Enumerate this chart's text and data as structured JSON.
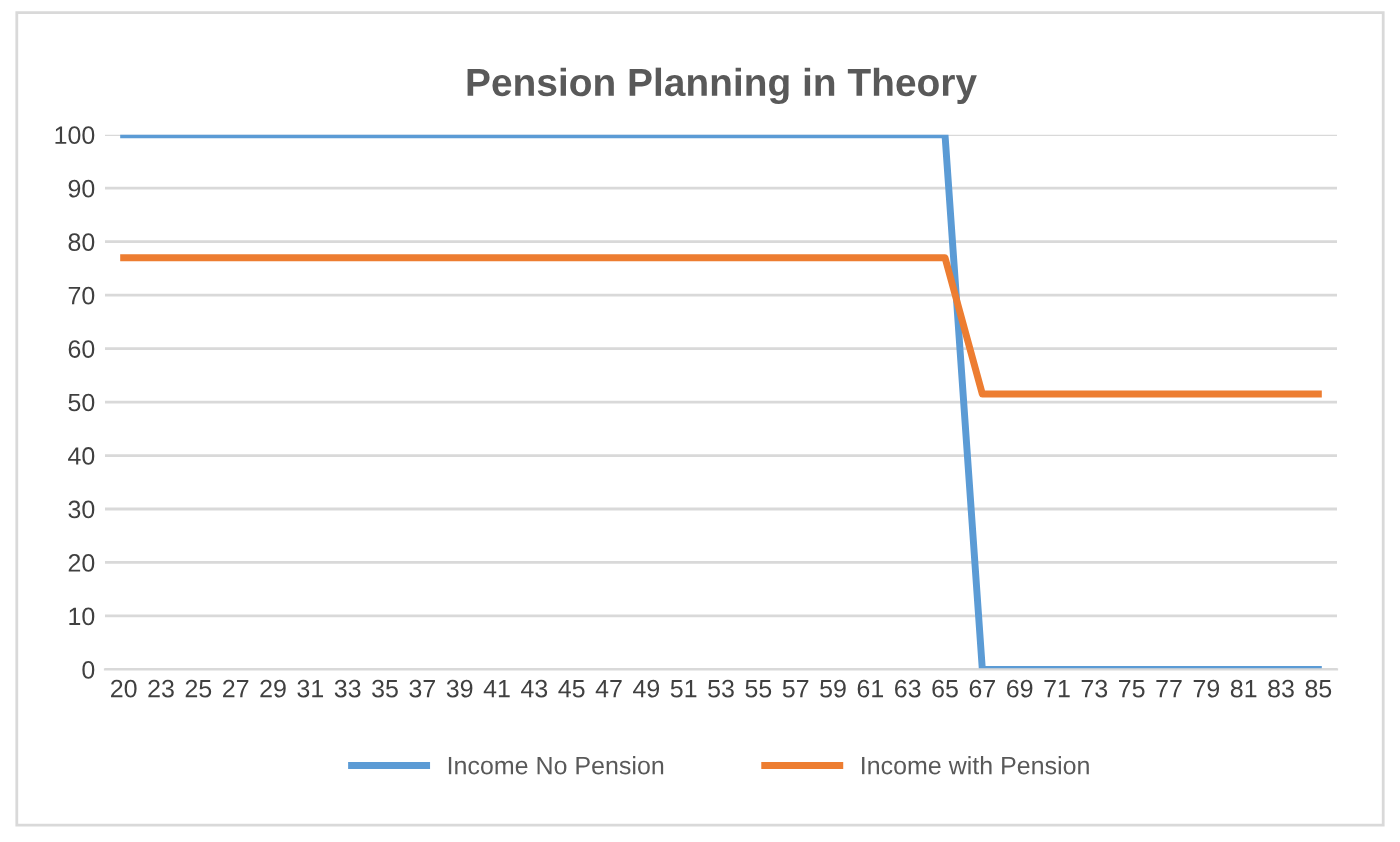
{
  "chart_data": {
    "type": "line",
    "title": "Pension Planning in Theory",
    "categories": [
      "20",
      "23",
      "25",
      "27",
      "29",
      "31",
      "33",
      "35",
      "37",
      "39",
      "41",
      "43",
      "45",
      "47",
      "49",
      "51",
      "53",
      "55",
      "57",
      "59",
      "61",
      "63",
      "65",
      "67",
      "69",
      "71",
      "73",
      "75",
      "77",
      "79",
      "81",
      "83",
      "85"
    ],
    "series": [
      {
        "name": "Income No Pension",
        "color": "#5b9bd5",
        "values": [
          100,
          100,
          100,
          100,
          100,
          100,
          100,
          100,
          100,
          100,
          100,
          100,
          100,
          100,
          100,
          100,
          100,
          100,
          100,
          100,
          100,
          100,
          100,
          0,
          0,
          0,
          0,
          0,
          0,
          0,
          0,
          0,
          0
        ]
      },
      {
        "name": "Income with Pension",
        "color": "#ed7d31",
        "values": [
          77,
          77,
          77,
          77,
          77,
          77,
          77,
          77,
          77,
          77,
          77,
          77,
          77,
          77,
          77,
          77,
          77,
          77,
          77,
          77,
          77,
          77,
          77,
          51.5,
          51.5,
          51.5,
          51.5,
          51.5,
          51.5,
          51.5,
          51.5,
          51.5,
          51.5
        ]
      }
    ],
    "ylim": [
      0,
      100
    ],
    "yticks": [
      0,
      10,
      20,
      30,
      40,
      50,
      60,
      70,
      80,
      90,
      100
    ],
    "grid": "y",
    "legend": "bottom",
    "marker": "none",
    "line_style": "solid"
  }
}
